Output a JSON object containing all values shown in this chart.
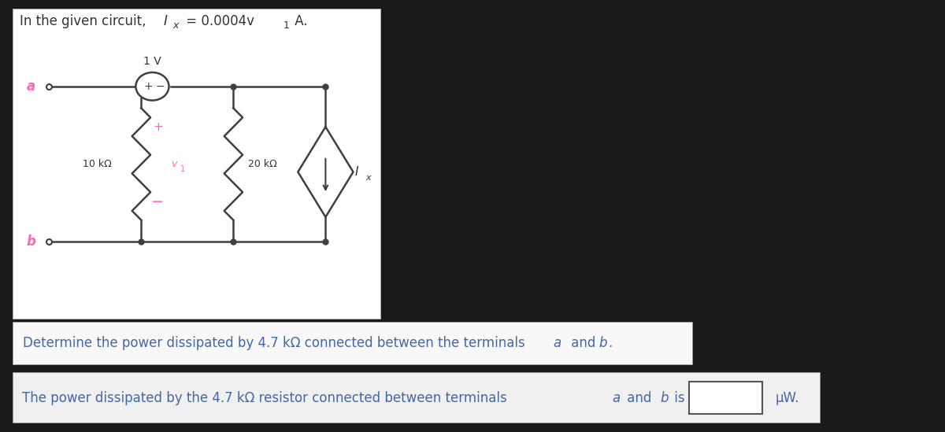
{
  "bg_color": "#1a1a1a",
  "panel1_bg": "#ffffff",
  "panel1_border": "#cccccc",
  "panel2_bg": "#f8f8f8",
  "panel2_border": "#999999",
  "panel3_bg": "#f0f0f0",
  "panel3_border": "#888888",
  "title_text": "In the given circuit, ",
  "title_Ix": "I",
  "title_x_sub": "x",
  "title_eq": " = 0.0004v",
  "title_v_sub": "1",
  "title_end": " A.",
  "label_10k": "10 kΩ",
  "label_20k": "20 kΩ",
  "label_1V": "1 V",
  "label_v1": "v",
  "label_v1_sub": "1",
  "label_plus_src": "+",
  "label_minus_src": "−",
  "label_plus_r": "+",
  "label_minus_r": "−",
  "label_Ix": "I",
  "label_Ix_sub": "x",
  "label_a": "a",
  "label_b": "b",
  "question_text": "Determine the power dissipated by 4.7 kΩ connected between the terminals ",
  "question_a": "a",
  "question_and": " and ",
  "question_b": "b",
  "question_end": ".",
  "answer_text1": "The power dissipated by the 4.7 kΩ resistor connected between terminals ",
  "answer_a": "a",
  "answer_and": " and ",
  "answer_b": "b",
  "answer_is": " is",
  "answer_unit": "μW.",
  "wire_color": "#404040",
  "resistor_color": "#404040",
  "source_color": "#404040",
  "label_color_pink": "#ff69b4",
  "label_color_dark": "#333333",
  "label_color_blue": "#4466aa"
}
